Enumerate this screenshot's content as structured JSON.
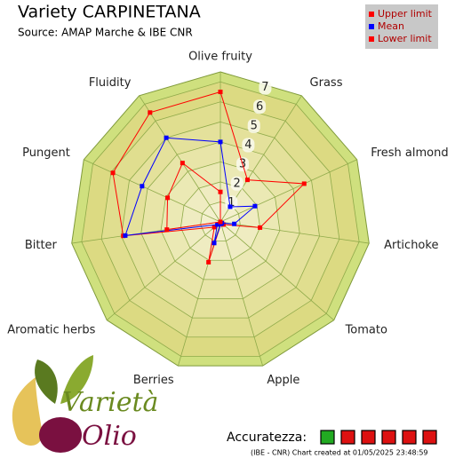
{
  "chart_data": {
    "type": "radar",
    "title": "Variety CARPINETANA",
    "subtitle": "Source: AMAP Marche & IBE CNR",
    "categories": [
      "Olive fruity",
      "Grass",
      "Fresh almond",
      "Artichoke",
      "Tomato",
      "Apple",
      "Berries",
      "Aromatic herbs",
      "Bitter",
      "Pungent",
      "Fluidity"
    ],
    "series": [
      {
        "name": "Upper limit",
        "color": "#ff0000",
        "values": [
          6.5,
          2.5,
          4.6,
          2.0,
          0.2,
          0.1,
          2.1,
          0.4,
          4.9,
          5.9,
          6.5
        ]
      },
      {
        "name": "Mean",
        "color": "#0000ff",
        "values": [
          4.0,
          0.9,
          1.9,
          0.7,
          0.1,
          0.1,
          1.1,
          0.2,
          4.8,
          4.3,
          5.0
        ]
      },
      {
        "name": "Lower limit",
        "color": "#ff0000",
        "values": [
          1.5,
          0,
          0,
          0,
          0,
          0,
          0,
          0,
          2.7,
          2.9,
          3.5
        ]
      }
    ],
    "rlim": [
      0,
      7.5
    ],
    "rticks": [
      1,
      2,
      3,
      4,
      5,
      6,
      7
    ],
    "legend": "top-right"
  },
  "logo": {
    "line1": "Varietà",
    "line2": "Olio"
  },
  "accuracy": {
    "label": "Accuratezza:",
    "boxes": [
      "#22aa22",
      "#dd1111",
      "#dd1111",
      "#dd1111",
      "#dd1111",
      "#dd1111"
    ]
  },
  "footer": "(IBE - CNR) Chart created at 01/05/2025 23:48:59"
}
